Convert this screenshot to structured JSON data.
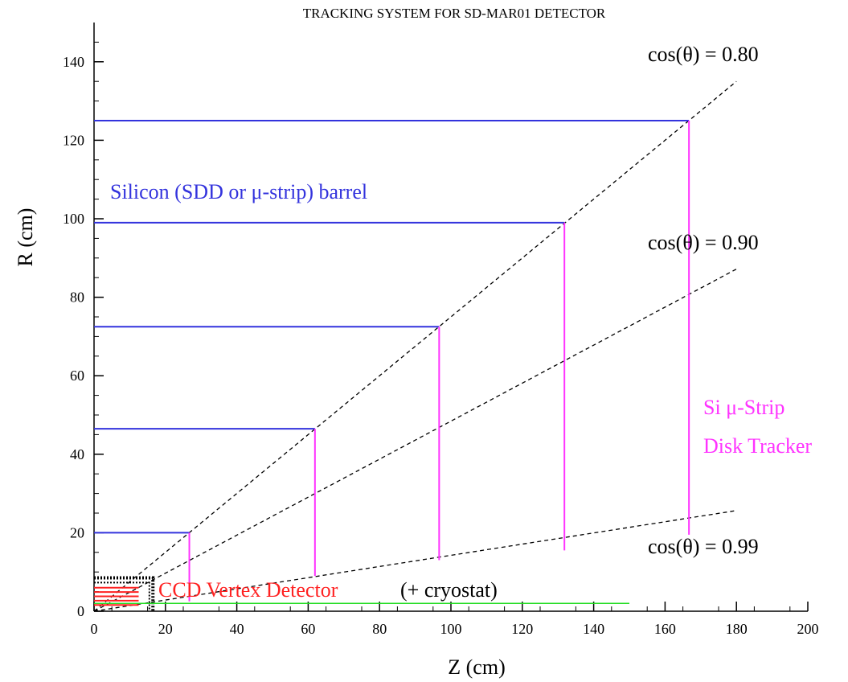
{
  "chart_data": {
    "type": "line",
    "title": "TRACKING SYSTEM FOR SD-MAR01 DETECTOR",
    "xlabel": "Z (cm)",
    "ylabel": "R (cm)",
    "xlim": [
      0,
      200
    ],
    "ylim": [
      0,
      150
    ],
    "xticks": [
      0,
      20,
      40,
      60,
      80,
      100,
      120,
      140,
      160,
      180,
      200
    ],
    "yticks": [
      0,
      20,
      40,
      60,
      80,
      100,
      120,
      140
    ],
    "grid": false,
    "barrel_layers": [
      {
        "r": 20,
        "z_end": 26.7
      },
      {
        "r": 46.5,
        "z_end": 61.9
      },
      {
        "r": 72.5,
        "z_end": 96.7
      },
      {
        "r": 99,
        "z_end": 131.8
      },
      {
        "r": 125,
        "z_end": 166.7
      }
    ],
    "disks": [
      {
        "z": 26.7,
        "r_min": 2.5,
        "r_max": 20
      },
      {
        "z": 61.9,
        "r_min": 9,
        "r_max": 46.5
      },
      {
        "z": 96.7,
        "r_min": 13,
        "r_max": 72.5
      },
      {
        "z": 131.8,
        "r_min": 15.5,
        "r_max": 99
      },
      {
        "z": 166.7,
        "r_min": 19.5,
        "r_max": 125
      }
    ],
    "cone_lines": [
      {
        "label": "cos(θ) = 0.80",
        "cos_theta": 0.8,
        "z_max": 180
      },
      {
        "label": "cos(θ) = 0.90",
        "cos_theta": 0.9,
        "z_max": 180
      },
      {
        "label": "cos(θ) = 0.99",
        "cos_theta": 0.99,
        "z_max": 180
      }
    ],
    "beam_pipe": {
      "r": 2,
      "z_end": 150
    },
    "vertex_detector": {
      "z_end": 16.5,
      "r_outer": 8.5
    },
    "annotations": {
      "barrel_label": "Silicon (SDD or μ-strip) barrel",
      "disk_label_line1": "Si μ-Strip",
      "disk_label_line2": "Disk Tracker",
      "vertex_label": "CCD Vertex Detector",
      "cryostat_label": "(+ cryostat)"
    },
    "colors": {
      "barrel": "#3333dd",
      "disk": "#ff33ff",
      "vertex": "#ff2222",
      "beam_pipe": "#22dd22",
      "cone": "#000000",
      "axes": "#000000"
    }
  }
}
